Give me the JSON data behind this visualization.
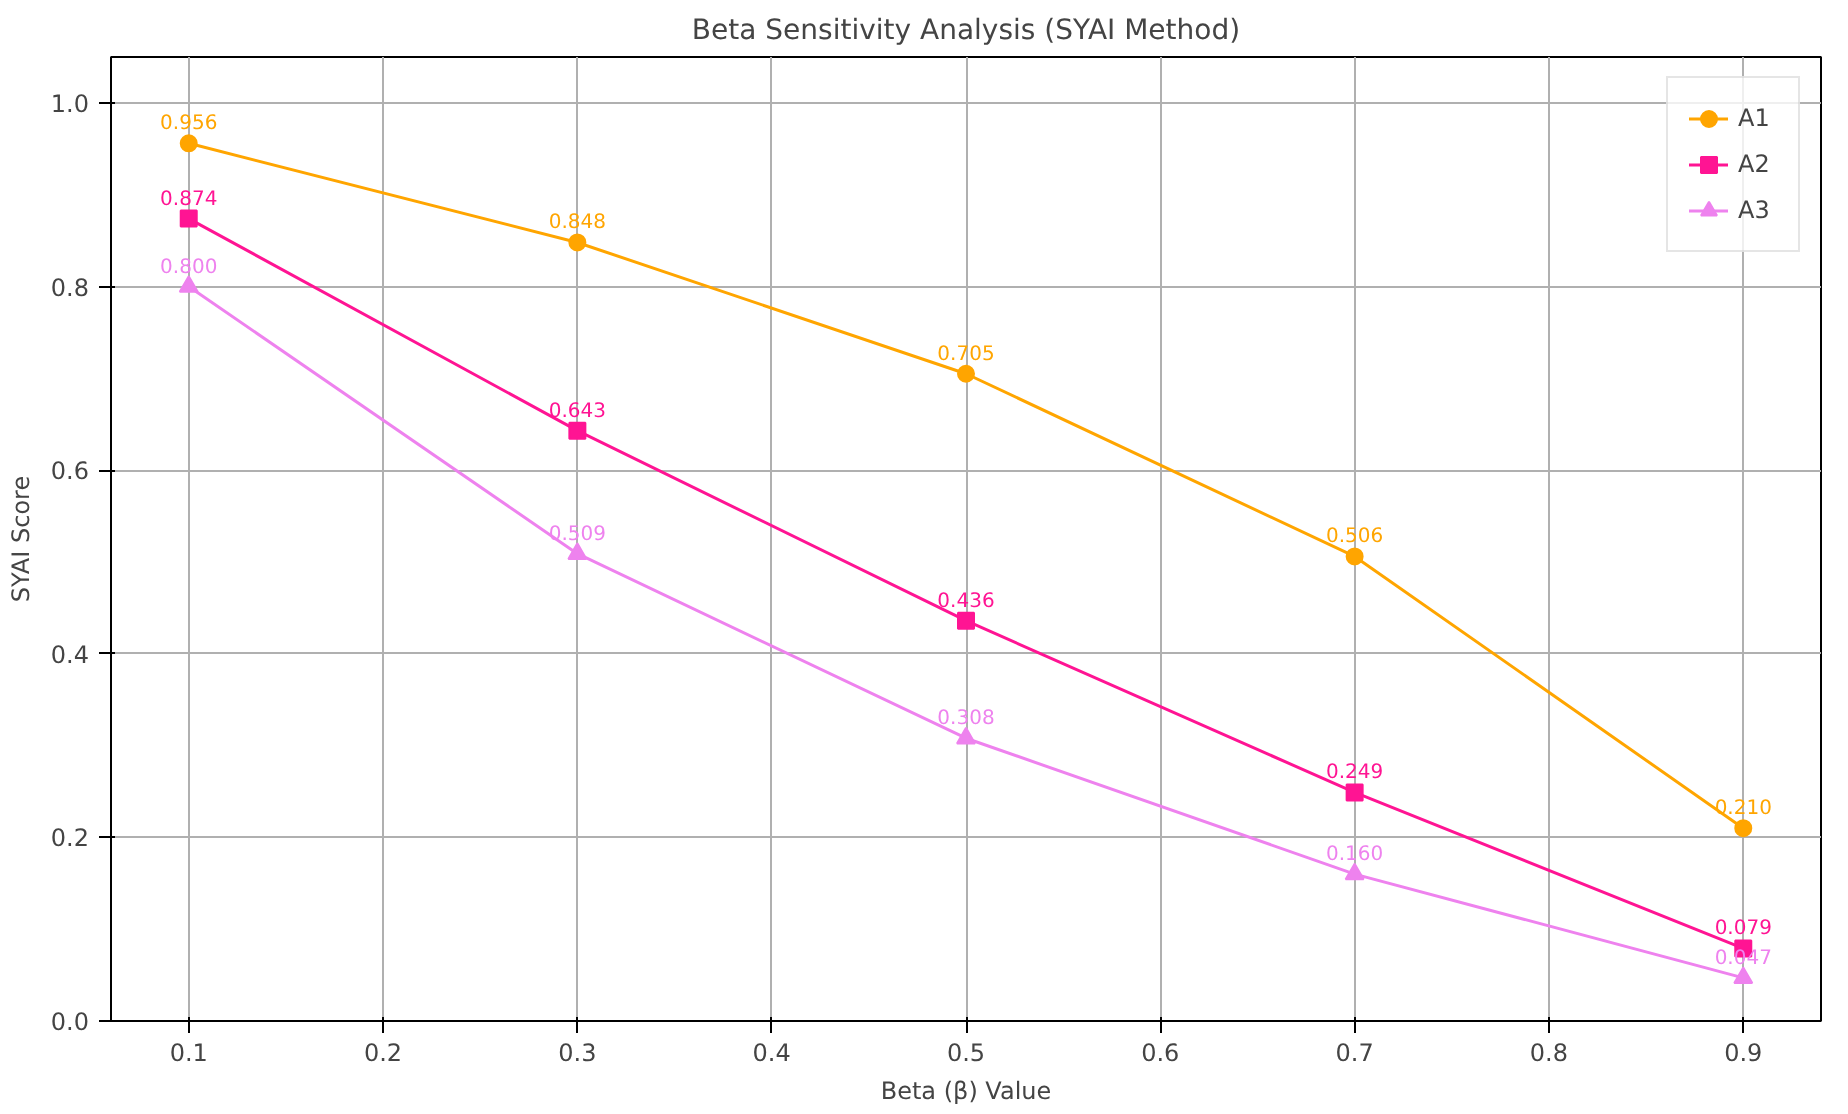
{
  "chart_data": {
    "type": "line",
    "title": "Beta Sensitivity Analysis (SYAI Method)",
    "xlabel": "Beta (β) Value",
    "ylabel": "SYAI Score",
    "x": [
      0.1,
      0.3,
      0.5,
      0.7,
      0.9
    ],
    "series": [
      {
        "name": "A1",
        "color": "#ffa500",
        "marker": "circle",
        "values": [
          0.956,
          0.848,
          0.705,
          0.506,
          0.21
        ],
        "value_labels": [
          "0.956",
          "0.848",
          "0.705",
          "0.506",
          "0.210"
        ]
      },
      {
        "name": "A2",
        "color": "#ff1493",
        "marker": "square",
        "values": [
          0.874,
          0.643,
          0.436,
          0.249,
          0.079
        ],
        "value_labels": [
          "0.874",
          "0.643",
          "0.436",
          "0.249",
          "0.079"
        ]
      },
      {
        "name": "A3",
        "color": "#ee82ee",
        "marker": "triangle",
        "values": [
          0.8,
          0.509,
          0.308,
          0.16,
          0.047
        ],
        "value_labels": [
          "0.800",
          "0.509",
          "0.308",
          "0.160",
          "0.047"
        ]
      }
    ],
    "xlim": [
      0.06,
      0.94
    ],
    "ylim": [
      0,
      1.05
    ],
    "xticks": [
      0.1,
      0.2,
      0.3,
      0.4,
      0.5,
      0.6,
      0.7,
      0.8,
      0.9
    ],
    "yticks": [
      {
        "value": 0,
        "label": "0.0"
      },
      {
        "value": 0.2,
        "label": "0.2"
      },
      {
        "value": 0.4,
        "label": "0.4"
      },
      {
        "value": 0.6,
        "label": "0.6"
      },
      {
        "value": 0.8,
        "label": "0.8"
      },
      {
        "value": 1.0,
        "label": "1.0"
      }
    ],
    "grid": true,
    "legend": "top right",
    "line_style": "solid"
  }
}
